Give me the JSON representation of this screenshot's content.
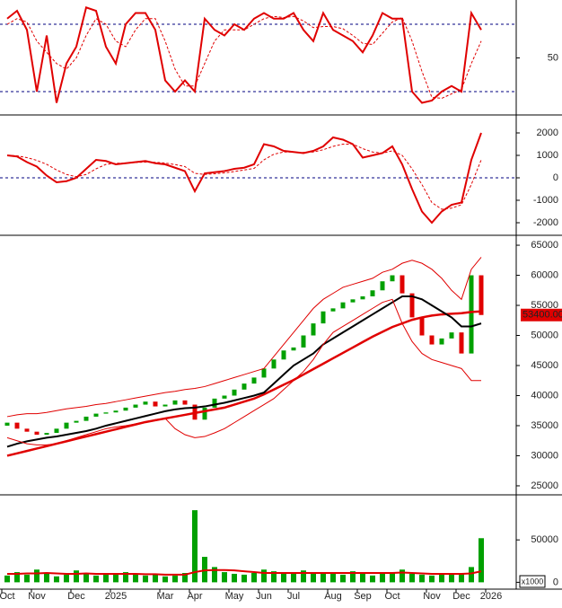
{
  "chart_data": [
    {
      "type": "line",
      "ylim": [
        0,
        100
      ],
      "yticks": [
        50
      ],
      "hlines": [
        20,
        80
      ],
      "series": [
        {
          "color": "#e00000",
          "dash": false,
          "values": [
            85,
            92,
            75,
            20,
            70,
            10,
            45,
            60,
            95,
            92,
            60,
            45,
            80,
            90,
            90,
            75,
            30,
            20,
            30,
            20,
            85,
            75,
            70,
            80,
            75,
            85,
            90,
            85,
            85,
            90,
            75,
            65,
            90,
            75,
            70,
            65,
            55,
            70,
            90,
            85,
            85,
            20,
            10,
            12,
            20,
            25,
            20,
            90,
            75,
            null
          ]
        },
        {
          "color": "#e00000",
          "dash": true,
          "values": [
            80,
            85,
            82,
            65,
            55,
            45,
            40,
            50,
            70,
            85,
            80,
            65,
            60,
            75,
            85,
            85,
            65,
            40,
            25,
            25,
            45,
            65,
            75,
            75,
            75,
            80,
            85,
            87,
            86,
            87,
            83,
            77,
            78,
            78,
            76,
            70,
            63,
            62,
            72,
            82,
            86,
            65,
            38,
            15,
            14,
            18,
            22,
            45,
            65,
            null
          ]
        }
      ]
    },
    {
      "type": "line",
      "ylim": [
        -2480,
        2720
      ],
      "yticks": [
        -2000,
        -1000,
        0,
        1000,
        2000
      ],
      "hlines": [
        0
      ],
      "series": [
        {
          "color": "#e00000",
          "dash": false,
          "values": [
            1000,
            950,
            700,
            500,
            100,
            -200,
            -150,
            0,
            400,
            800,
            750,
            600,
            650,
            700,
            750,
            650,
            600,
            450,
            300,
            -600,
            200,
            250,
            300,
            400,
            450,
            600,
            1500,
            1400,
            1200,
            1150,
            1100,
            1200,
            1400,
            1800,
            1700,
            1500,
            900,
            1000,
            1100,
            1400,
            600,
            -500,
            -1500,
            -2000,
            -1500,
            -1200,
            -1100,
            800,
            2000,
            null
          ]
        },
        {
          "color": "#e00000",
          "dash": true,
          "values": [
            1000,
            980,
            900,
            780,
            600,
            350,
            150,
            50,
            150,
            400,
            600,
            650,
            650,
            680,
            700,
            690,
            660,
            590,
            500,
            200,
            150,
            180,
            220,
            280,
            350,
            420,
            800,
            1050,
            1150,
            1150,
            1130,
            1150,
            1250,
            1400,
            1500,
            1500,
            1300,
            1150,
            1100,
            1200,
            1000,
            400,
            -300,
            -1100,
            -1400,
            -1350,
            -1200,
            -300,
            800,
            null
          ]
        }
      ]
    },
    {
      "type": "candlestick",
      "ylim": [
        23650,
        66500
      ],
      "yticks": [
        25000,
        30000,
        35000,
        40000,
        45000,
        50000,
        55000,
        60000,
        65000
      ],
      "up_color": "#00a000",
      "down_color": "#e00000",
      "open": [
        35000,
        35500,
        34500,
        34000,
        33500,
        33800,
        34500,
        35500,
        35800,
        36500,
        37000,
        37200,
        37500,
        38000,
        38500,
        39000,
        38200,
        38500,
        39200,
        38500,
        36000,
        38000,
        39500,
        40000,
        41000,
        42000,
        43000,
        44500,
        46000,
        47500,
        48000,
        50000,
        52000,
        54000,
        54500,
        55500,
        56000,
        56500,
        57500,
        59000,
        60000,
        57000,
        53000,
        50000,
        48500,
        49500,
        50500,
        47000,
        60000,
        null
      ],
      "close": [
        35500,
        34500,
        34000,
        33500,
        33800,
        34500,
        35500,
        35800,
        36500,
        37000,
        37200,
        37500,
        38000,
        38500,
        39000,
        38200,
        38500,
        39200,
        38500,
        36000,
        38000,
        39500,
        40000,
        41000,
        42000,
        43000,
        44500,
        46000,
        47500,
        48000,
        50000,
        52000,
        54000,
        54500,
        55500,
        56000,
        56500,
        57500,
        59000,
        60000,
        57000,
        53000,
        50000,
        48500,
        49500,
        50500,
        47000,
        60000,
        53400,
        null
      ],
      "last_value_label": "53400.00",
      "series": [
        {
          "color": "#e00000",
          "width": 2.5,
          "values": [
            30000,
            30400,
            30800,
            31200,
            31600,
            32000,
            32400,
            32800,
            33200,
            33600,
            34000,
            34400,
            34800,
            35200,
            35600,
            35900,
            36200,
            36500,
            36800,
            37100,
            37400,
            37700,
            38000,
            38500,
            39000,
            39500,
            40200,
            41000,
            41800,
            42600,
            43500,
            44400,
            45300,
            46200,
            47100,
            48000,
            48900,
            49800,
            50600,
            51400,
            52000,
            52600,
            53000,
            53300,
            53500,
            53600,
            53700,
            53900,
            54000,
            null
          ]
        },
        {
          "color": "#000000",
          "width": 2,
          "values": [
            31500,
            32000,
            32400,
            32700,
            33000,
            33200,
            33500,
            33800,
            34100,
            34500,
            35000,
            35400,
            35800,
            36200,
            36600,
            37000,
            37400,
            37700,
            37900,
            38000,
            38200,
            38500,
            38800,
            39200,
            39600,
            40000,
            40500,
            42000,
            43500,
            45000,
            46000,
            47000,
            48500,
            49500,
            50500,
            51500,
            52500,
            53500,
            54500,
            55500,
            56500,
            56500,
            56000,
            55000,
            54000,
            53000,
            51500,
            51500,
            52000,
            null
          ]
        },
        {
          "color": "#e00000",
          "width": 1,
          "values": [
            36500,
            36800,
            37000,
            37000,
            37200,
            37500,
            37800,
            38000,
            38200,
            38500,
            38700,
            39000,
            39300,
            39600,
            39900,
            40200,
            40500,
            40700,
            41000,
            41200,
            41500,
            42000,
            42500,
            43000,
            43500,
            44000,
            44500,
            46500,
            48500,
            50500,
            52500,
            54500,
            56000,
            57000,
            58000,
            58500,
            59000,
            59500,
            60500,
            61000,
            62000,
            62500,
            62000,
            61000,
            59500,
            57500,
            56000,
            61000,
            63000,
            null
          ]
        },
        {
          "color": "#e00000",
          "width": 1,
          "values": [
            33000,
            32500,
            32000,
            31800,
            31800,
            32000,
            32500,
            33000,
            33500,
            34000,
            34500,
            34800,
            35000,
            35300,
            35600,
            36000,
            36200,
            34500,
            33500,
            33000,
            33200,
            33800,
            34500,
            35500,
            36500,
            37500,
            38500,
            39500,
            41000,
            42500,
            44000,
            46000,
            48500,
            50500,
            51500,
            52500,
            53500,
            54500,
            55500,
            56000,
            52000,
            49000,
            47000,
            46000,
            45500,
            45000,
            44500,
            42500,
            42500,
            null
          ]
        }
      ]
    },
    {
      "type": "bar",
      "ylim": [
        -7000,
        101000
      ],
      "yticks": [
        0,
        50000
      ],
      "color": "#00a000",
      "unit_label": "x1000",
      "categories": [
        "Oct",
        null,
        null,
        "Nov",
        null,
        null,
        null,
        "Dec",
        null,
        null,
        null,
        "2025",
        null,
        null,
        null,
        null,
        "Mar",
        null,
        null,
        "Apr",
        null,
        null,
        null,
        "May",
        null,
        null,
        "Jun",
        null,
        null,
        "Jul",
        null,
        null,
        null,
        "Aug",
        null,
        null,
        "Sep",
        null,
        null,
        "Oct",
        null,
        null,
        null,
        "Nov",
        null,
        null,
        "Dec",
        null,
        null,
        "2026"
      ],
      "values": [
        8000,
        12000,
        9000,
        15000,
        10000,
        7000,
        9000,
        14000,
        11000,
        8000,
        10000,
        9000,
        12000,
        10000,
        8000,
        9000,
        7000,
        8000,
        11000,
        85000,
        30000,
        18000,
        12000,
        10000,
        9000,
        11000,
        15000,
        13000,
        12000,
        10000,
        14000,
        11000,
        10000,
        12000,
        9000,
        13000,
        10000,
        8000,
        12000,
        11000,
        15000,
        10000,
        9000,
        8000,
        11000,
        9000,
        10000,
        18000,
        52000,
        null
      ],
      "series": [
        {
          "color": "#e00000",
          "width": 2,
          "values": [
            10000,
            10000,
            10500,
            10500,
            11000,
            10500,
            10000,
            10000,
            10500,
            10000,
            10000,
            10000,
            10000,
            10000,
            9500,
            9500,
            9000,
            9000,
            9000,
            12000,
            14000,
            14500,
            14500,
            14000,
            13000,
            12000,
            11000,
            11000,
            11000,
            11000,
            11000,
            11000,
            11000,
            11000,
            11000,
            11000,
            11000,
            11000,
            11000,
            11000,
            11500,
            11000,
            10500,
            10000,
            10000,
            10000,
            10000,
            10500,
            13000,
            null
          ]
        }
      ]
    }
  ]
}
